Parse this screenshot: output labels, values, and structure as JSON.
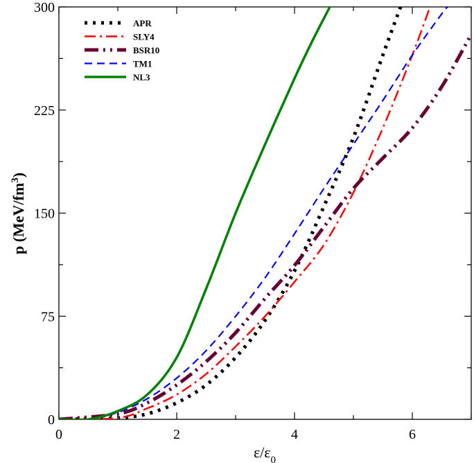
{
  "chart_data": {
    "type": "line",
    "xlim": [
      0,
      7
    ],
    "ylim": [
      0,
      300
    ],
    "xticks": [
      "0",
      "2",
      "4",
      "6"
    ],
    "xtick_values": [
      0,
      2,
      4,
      6
    ],
    "yticks": [
      "0",
      "75",
      "150",
      "225",
      "300"
    ],
    "ytick_values": [
      0,
      75,
      150,
      225,
      300
    ],
    "xlabel": {
      "main": "ε/ε",
      "sub": "0"
    },
    "ylabel": {
      "main": "p (MeV/fm",
      "sup": "3",
      "end": ")"
    },
    "grid": false,
    "legend_position": "top-left",
    "series": [
      {
        "name": "APR",
        "color": "#000000",
        "style": "dotted",
        "x": [
          0,
          1.0,
          1.5,
          2.0,
          2.5,
          3.0,
          3.5,
          4.0,
          4.5,
          5.0,
          5.5,
          5.8
        ],
        "y": [
          0,
          1,
          4,
          12,
          25,
          45,
          72,
          108,
          155,
          205,
          265,
          300
        ]
      },
      {
        "name": "SLY4",
        "color": "#ff0000",
        "style": "dashdot",
        "x": [
          0,
          1.0,
          1.5,
          2.0,
          2.5,
          3.0,
          3.5,
          4.0,
          4.5,
          5.0,
          5.5,
          6.0,
          6.3
        ],
        "y": [
          0,
          1,
          8,
          18,
          33,
          53,
          75,
          100,
          127,
          165,
          212,
          265,
          300
        ]
      },
      {
        "name": "BSR10",
        "color": "#660033",
        "style": "dashdotdot",
        "x": [
          0,
          1.0,
          1.5,
          2.0,
          2.5,
          3.0,
          3.5,
          4.0,
          4.5,
          5.0,
          5.5,
          6.0,
          6.5,
          7.0
        ],
        "y": [
          0,
          4,
          12,
          25,
          42,
          63,
          88,
          112,
          140,
          168,
          190,
          212,
          242,
          280
        ]
      },
      {
        "name": "TM1",
        "color": "#0000ff",
        "style": "dashed",
        "x": [
          0,
          0.5,
          1.0,
          1.5,
          2.0,
          2.5,
          3.0,
          3.5,
          4.0,
          4.5,
          5.0,
          5.5,
          6.0,
          6.5,
          6.6
        ],
        "y": [
          0,
          0,
          5,
          15,
          30,
          50,
          75,
          103,
          135,
          168,
          200,
          232,
          265,
          295,
          300
        ]
      },
      {
        "name": "NL3",
        "color": "#008000",
        "style": "solid",
        "x": [
          0,
          0.5,
          1.0,
          1.5,
          2.0,
          2.5,
          3.0,
          3.5,
          4.0,
          4.3,
          4.6
        ],
        "y": [
          0,
          0,
          6,
          18,
          45,
          95,
          150,
          200,
          248,
          275,
          300
        ]
      }
    ]
  }
}
